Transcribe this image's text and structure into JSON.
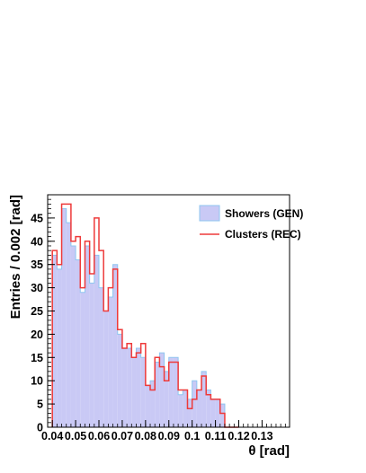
{
  "chart_data": {
    "type": "histogram",
    "xlabel": "θ [rad]",
    "ylabel": "Entries / 0.002 [rad]",
    "xlim": [
      0.038,
      0.1418
    ],
    "ylim": [
      0,
      50
    ],
    "bin_width": 0.002,
    "bin_edges_start": 0.04,
    "x_ticks": [
      0.04,
      0.05,
      0.06,
      0.07,
      0.08,
      0.09,
      0.1,
      0.11,
      0.12,
      0.13
    ],
    "x_tick_labels": [
      "0.04",
      "0.05",
      "0.06",
      "0.07",
      "0.08",
      "0.09",
      "0.1",
      "0.11",
      "0.12",
      "0.13"
    ],
    "y_ticks": [
      0,
      5,
      10,
      15,
      20,
      25,
      30,
      35,
      40,
      45
    ],
    "y_tick_labels": [
      "0",
      "5",
      "10",
      "15",
      "20",
      "25",
      "30",
      "35",
      "40",
      "45"
    ],
    "legend_position": "top-right",
    "series": [
      {
        "name": "Showers (GEN)",
        "style": "filled",
        "fill_color": "#c9c9f5",
        "edge_color": "#8fc6f0",
        "values": [
          37,
          34,
          47,
          44,
          39,
          36,
          29,
          39,
          31,
          37,
          30,
          25,
          28,
          35,
          20,
          17,
          17,
          15,
          17,
          15,
          9,
          10,
          14,
          16,
          12,
          15,
          15,
          7,
          8,
          6,
          10,
          8,
          12,
          8,
          6,
          6,
          5,
          0,
          0,
          0
        ]
      },
      {
        "name": "Clusters (REC)",
        "style": "line",
        "line_color": "#ee3a3a",
        "values": [
          38,
          35,
          48,
          48,
          40,
          41,
          30,
          40,
          33,
          45,
          38,
          25,
          30,
          34,
          21,
          17,
          18,
          15,
          16,
          18,
          9,
          8,
          15,
          13,
          10,
          14,
          14,
          8,
          8,
          4,
          6,
          8,
          11,
          7,
          6,
          6,
          3,
          0,
          0,
          0
        ]
      }
    ]
  }
}
